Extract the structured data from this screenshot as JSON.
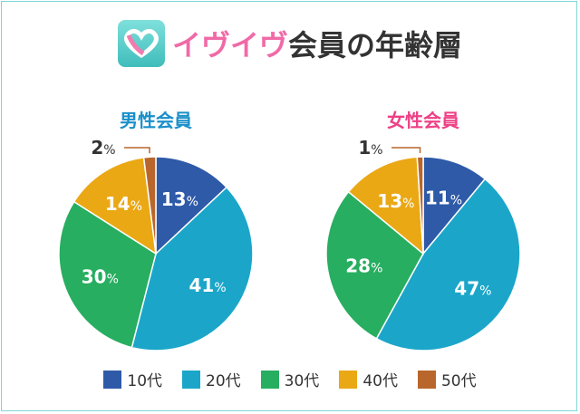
{
  "title": {
    "brand": "イヴイヴ",
    "rest": "会員の年齢層"
  },
  "chart_data": [
    {
      "type": "pie",
      "title": "男性会員",
      "title_color": "#1a8fc9",
      "categories": [
        "10代",
        "20代",
        "30代",
        "40代",
        "50代"
      ],
      "values": [
        13,
        41,
        30,
        14,
        2
      ],
      "labels": [
        "13",
        "41",
        "30",
        "14",
        "2"
      ],
      "unit": "%"
    },
    {
      "type": "pie",
      "title": "女性会員",
      "title_color": "#ee3f86",
      "categories": [
        "10代",
        "20代",
        "30代",
        "40代",
        "50代"
      ],
      "values": [
        11,
        47,
        28,
        13,
        1
      ],
      "labels": [
        "11",
        "47",
        "28",
        "13",
        "1"
      ],
      "unit": "%"
    }
  ],
  "colors": [
    "#2e5aa8",
    "#1ba6c9",
    "#27ae60",
    "#eaa815",
    "#b9662c"
  ],
  "legend": [
    "10代",
    "20代",
    "30代",
    "40代",
    "50代"
  ]
}
